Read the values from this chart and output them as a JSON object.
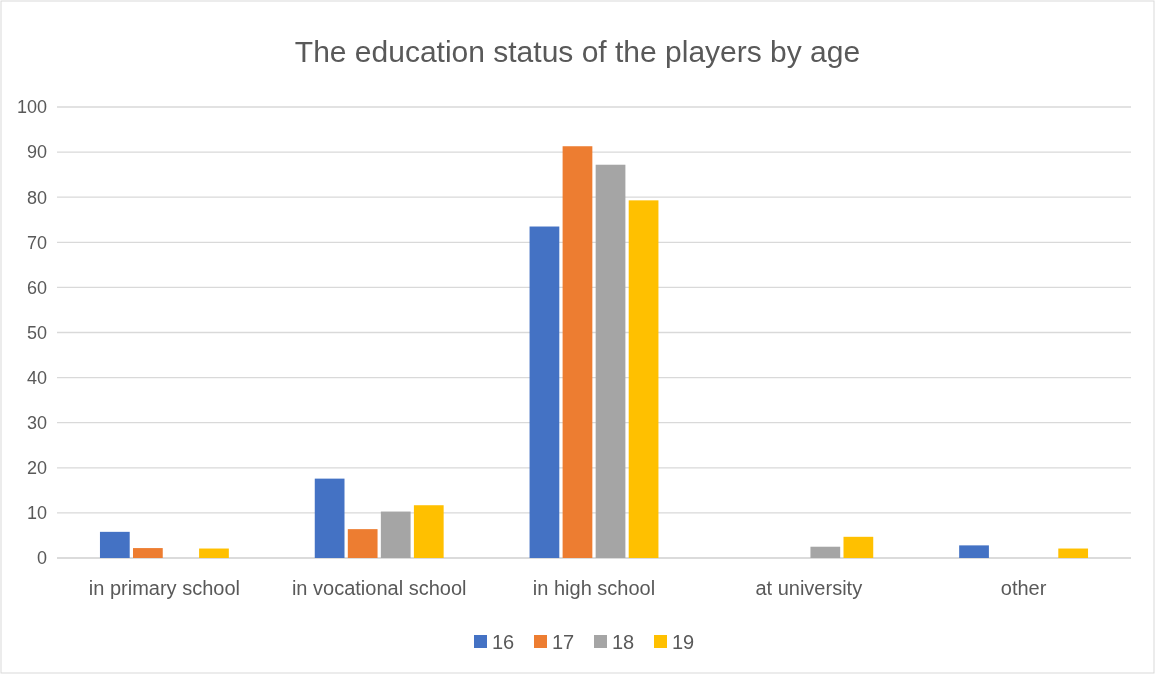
{
  "chart_data": {
    "type": "bar",
    "title": "The education status of the players by age",
    "categories": [
      "in primary school",
      "in vocational school",
      "in high school",
      "at university",
      "other"
    ],
    "series": [
      {
        "name": "16",
        "color": "#4472c4",
        "values": [
          5.8,
          17.6,
          73.5,
          null,
          2.8
        ]
      },
      {
        "name": "17",
        "color": "#ed7d31",
        "values": [
          2.2,
          6.4,
          91.3,
          null,
          null
        ]
      },
      {
        "name": "18",
        "color": "#a5a5a5",
        "values": [
          null,
          10.3,
          87.2,
          2.5,
          null
        ]
      },
      {
        "name": "19",
        "color": "#ffc000",
        "values": [
          2.1,
          11.7,
          79.3,
          4.7,
          2.1
        ]
      }
    ],
    "ylim": [
      0,
      100
    ],
    "yticks": [
      0,
      10,
      20,
      30,
      40,
      50,
      60,
      70,
      80,
      90,
      100
    ],
    "grid": "y",
    "legend": "bottom"
  }
}
